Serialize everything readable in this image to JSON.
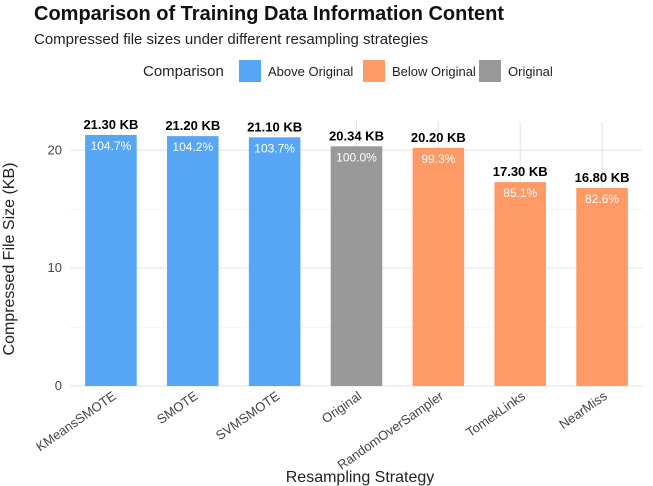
{
  "chart_data": {
    "type": "bar",
    "title": "Comparison of Training Data Information Content",
    "subtitle": "Compressed file sizes under different resampling strategies",
    "xlabel": "Resampling Strategy",
    "ylabel": "Compressed File Size (KB)",
    "ylim": [
      0,
      22.4
    ],
    "yticks": [
      0,
      10,
      20
    ],
    "legend": {
      "title": "Comparison",
      "position": "top",
      "entries": [
        {
          "label": "Above Original",
          "color": "#56A6F5"
        },
        {
          "label": "Below Original",
          "color": "#FF9966"
        },
        {
          "label": "Original",
          "color": "#999999"
        }
      ]
    },
    "categories": [
      "KMeansSMOTE",
      "SMOTE",
      "SVMSMOTE",
      "Original",
      "RandomOverSampler",
      "TomekLinks",
      "NearMiss"
    ],
    "values": [
      21.3,
      21.2,
      21.1,
      20.34,
      20.2,
      17.3,
      16.8
    ],
    "value_labels": [
      "21.30 KB",
      "21.20 KB",
      "21.10 KB",
      "20.34 KB",
      "20.20 KB",
      "17.30 KB",
      "16.80 KB"
    ],
    "percent_labels": [
      "104.7%",
      "104.2%",
      "103.7%",
      "100.0%",
      "99.3%",
      "85.1%",
      "82.6%"
    ],
    "groups": [
      "Above Original",
      "Above Original",
      "Above Original",
      "Original",
      "Below Original",
      "Below Original",
      "Below Original"
    ]
  }
}
